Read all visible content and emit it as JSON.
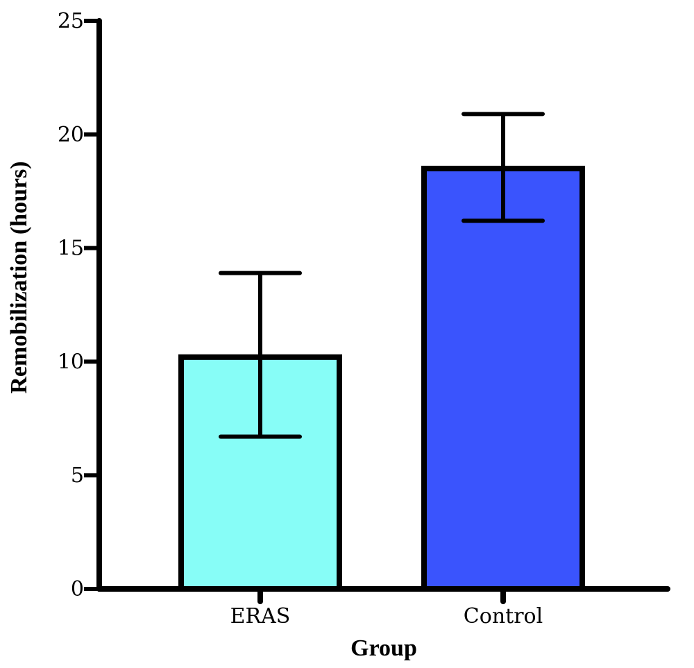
{
  "chart_data": {
    "type": "bar",
    "title": "",
    "xlabel": "Group",
    "ylabel": "Remobilization (hours)",
    "categories": [
      "ERAS",
      "Control"
    ],
    "values": [
      10.2,
      18.5
    ],
    "error_upper": [
      13.9,
      20.9
    ],
    "error_lower": [
      6.7,
      16.2
    ],
    "bar_colors": [
      "#87fdf7",
      "#3a54fd"
    ],
    "ylim": [
      0,
      25
    ],
    "yticks": [
      0,
      5,
      10,
      15,
      20,
      25
    ],
    "ytick_labels": [
      "0",
      "5",
      "10",
      "15",
      "20",
      "25"
    ],
    "grid": false
  }
}
